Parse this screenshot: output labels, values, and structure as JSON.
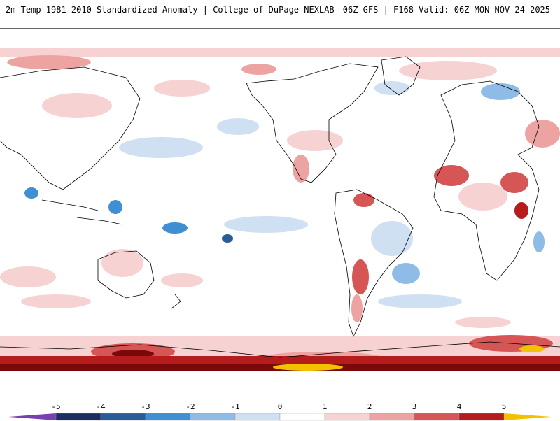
{
  "header": {
    "title": "2m Temp 1981-2010 Standardized Anomaly | College of DuPage NEXLAB",
    "run_info": "06Z GFS | F168 Valid: 06Z MON NOV 24 2025"
  },
  "colorbar": {
    "ticks": [
      "-5",
      "-4",
      "-3",
      "-2",
      "-1",
      "0",
      "1",
      "2",
      "3",
      "4",
      "5"
    ],
    "colors": {
      "below_min": "#7a3fb0",
      "n5": "#1d2f5e",
      "n4": "#2a5c98",
      "n3": "#3f8fd2",
      "n2": "#8fbce6",
      "n1": "#cfe0f2",
      "zero_neg": "#ffffff",
      "zero_pos": "#ffffff",
      "p1": "#f7d2d2",
      "p2": "#eea3a3",
      "p3": "#d65555",
      "p4": "#b51c1c",
      "p5": "#7a0a0a",
      "above_max": "#f2c200"
    }
  },
  "map": {
    "landmass_outline_color": "#000000",
    "background": "#ffffff"
  }
}
